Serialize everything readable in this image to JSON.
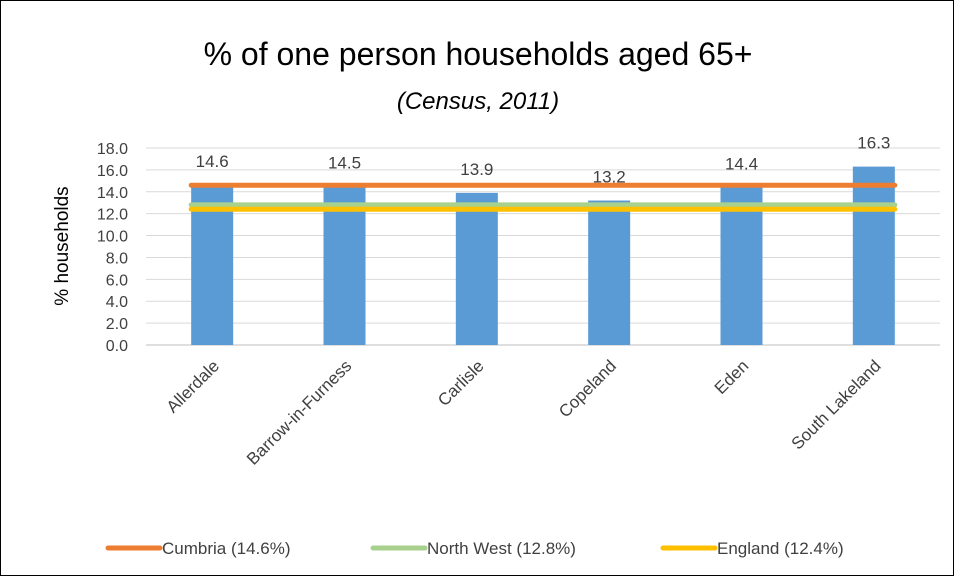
{
  "chart_data": {
    "type": "bar",
    "title": "% of one person households aged 65+",
    "subtitle": "(Census, 2011)",
    "ylabel": "% households",
    "xlabel": "",
    "ylim": [
      0,
      18
    ],
    "ytick_step": 2,
    "ytick_labels": [
      "0.0",
      "2.0",
      "4.0",
      "6.0",
      "8.0",
      "10.0",
      "12.0",
      "14.0",
      "16.0",
      "18.0"
    ],
    "grid": true,
    "categories": [
      "Allerdale",
      "Barrow-in-Furness",
      "Carlisle",
      "Copeland",
      "Eden",
      "South Lakeland"
    ],
    "values": [
      14.6,
      14.5,
      13.9,
      13.2,
      14.4,
      16.3
    ],
    "data_labels": [
      "14.6",
      "14.5",
      "13.9",
      "13.2",
      "14.4",
      "16.3"
    ],
    "bar_color": "#5b9bd5",
    "reference_lines": [
      {
        "name": "Cumbria (14.6%)",
        "value": 14.6,
        "color": "#ed7d31"
      },
      {
        "name": "North West (12.8%)",
        "value": 12.8,
        "color": "#a9d18e"
      },
      {
        "name": "England (12.4%)",
        "value": 12.4,
        "color": "#ffc000"
      }
    ],
    "legend_position": "bottom"
  }
}
